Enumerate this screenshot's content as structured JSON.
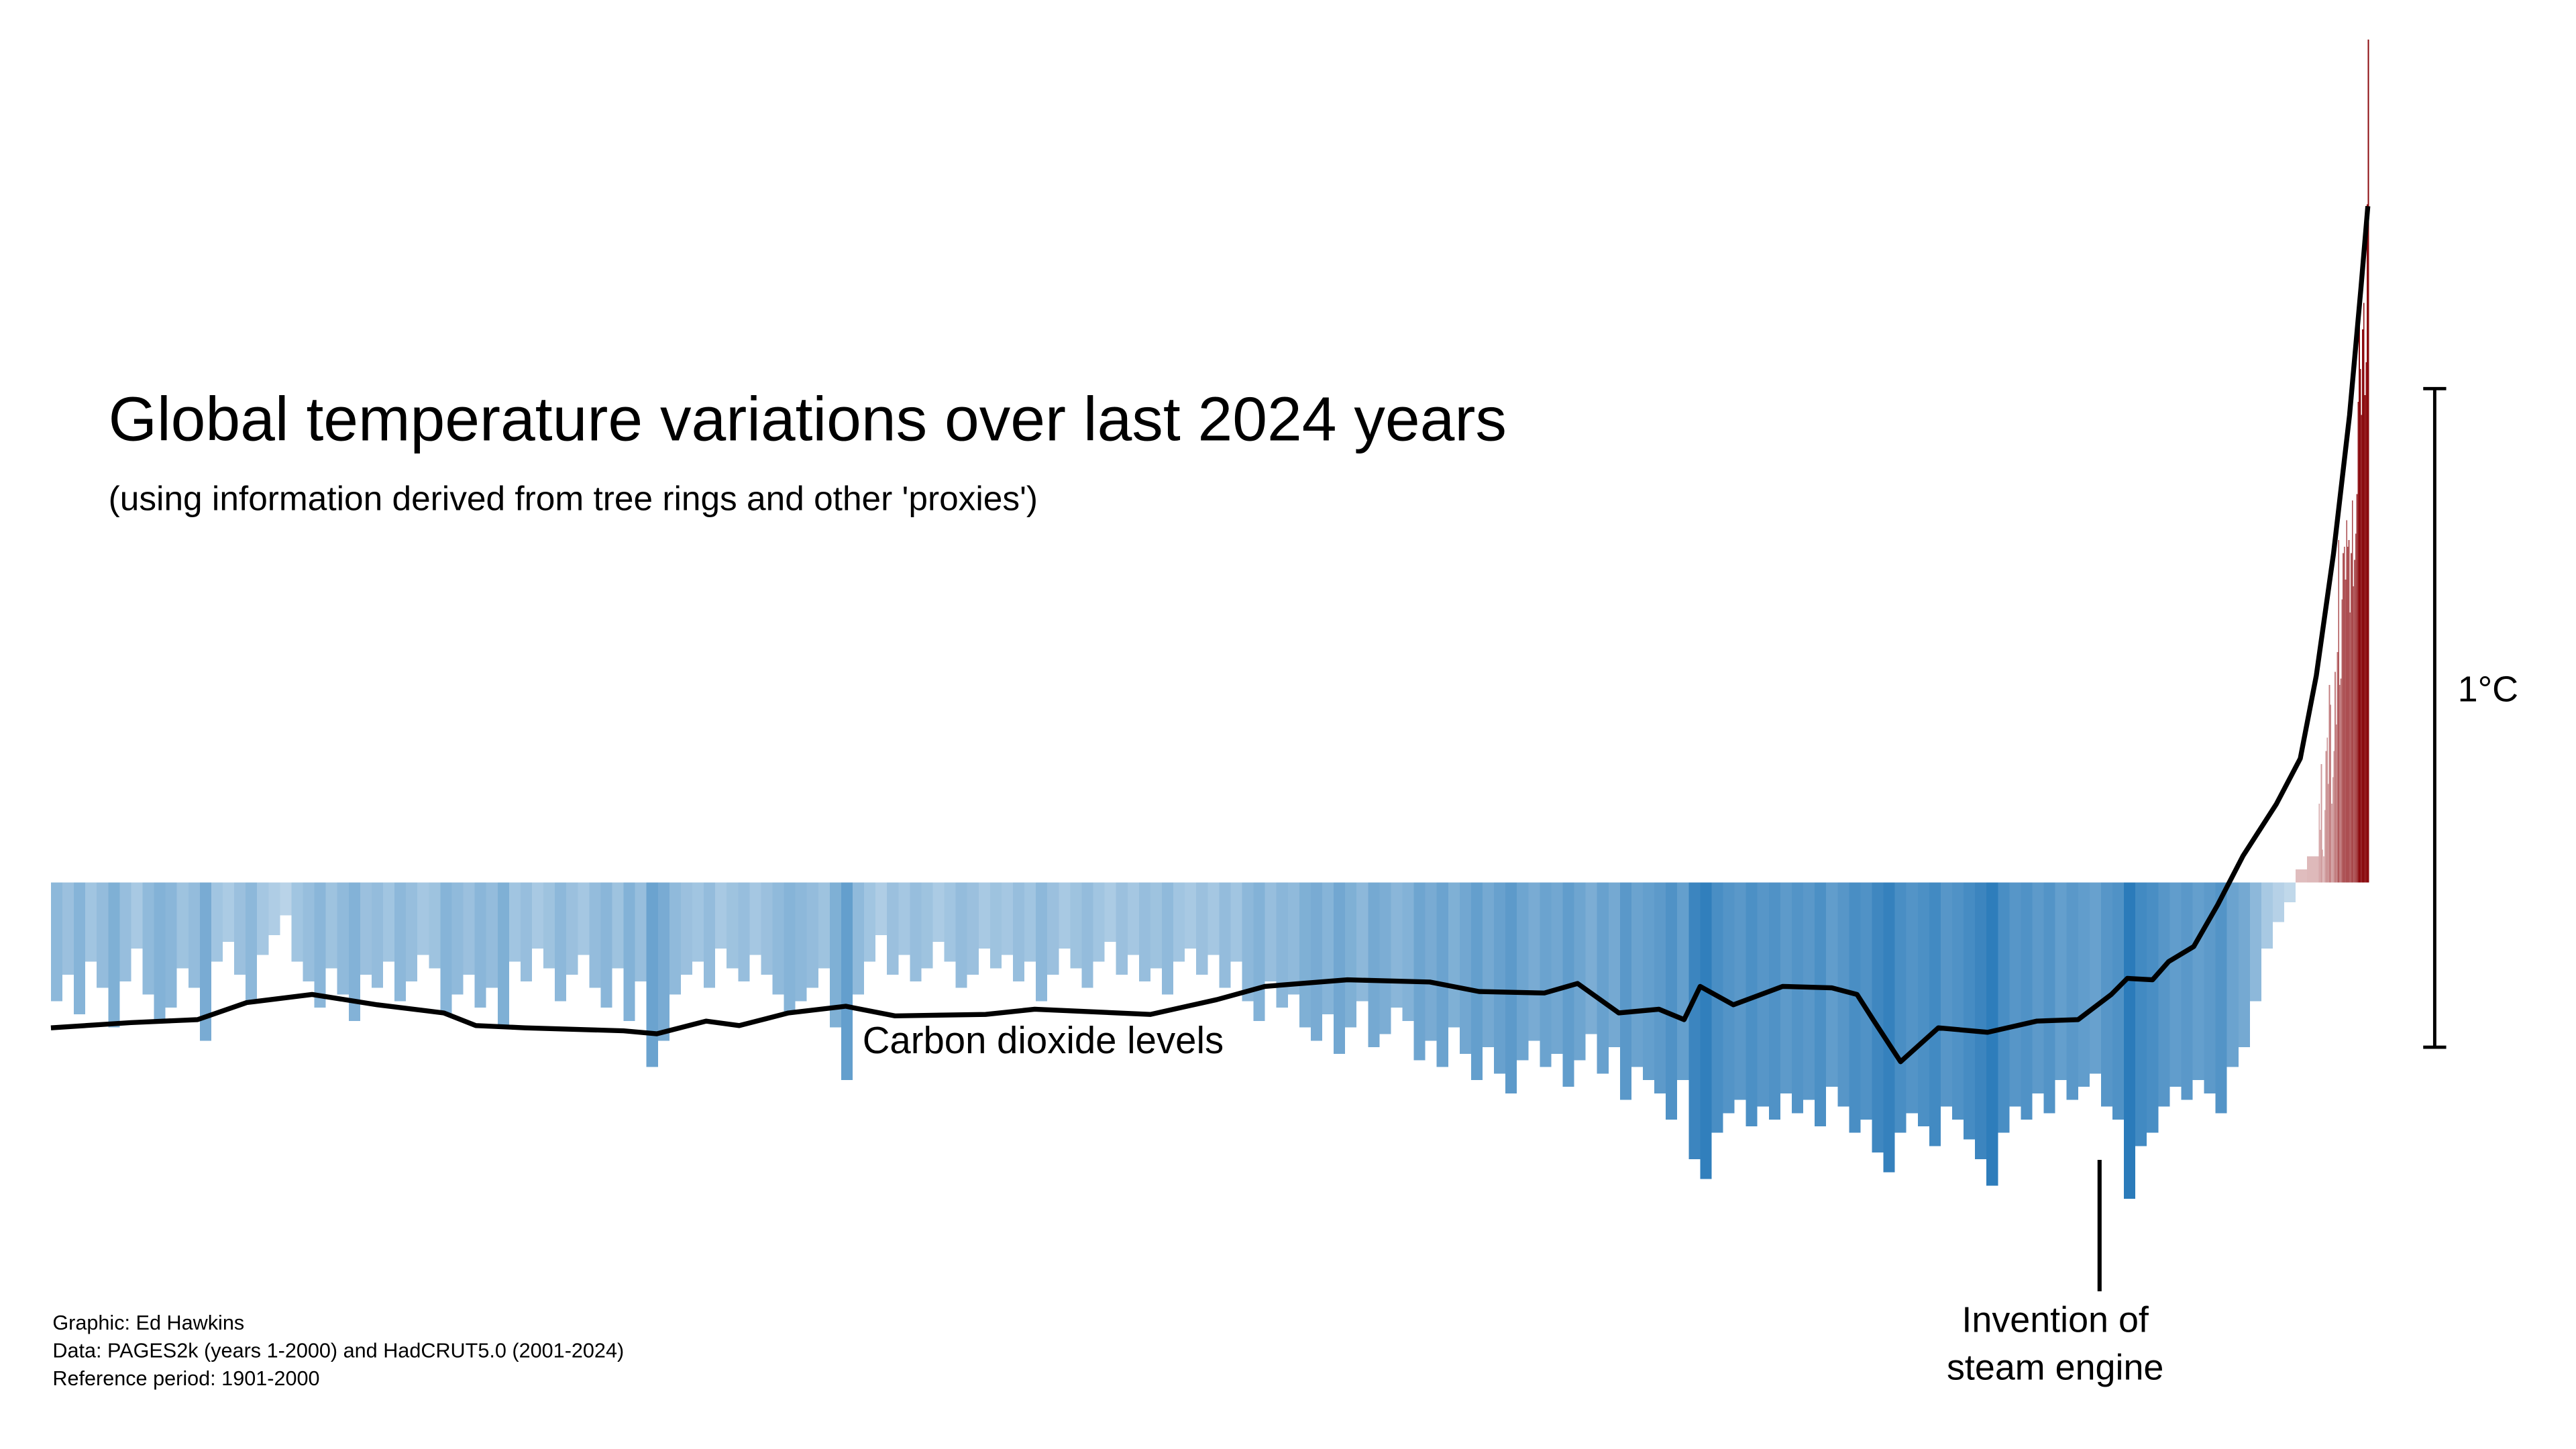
{
  "chart_data": {
    "type": "bar",
    "title": "Global temperature variations over last 2024 years",
    "subtitle": "(using information derived from tree rings and other 'proxies')",
    "x": [
      1,
      11,
      21,
      31,
      41,
      51,
      61,
      71,
      81,
      91,
      101,
      111,
      121,
      131,
      141,
      151,
      161,
      171,
      181,
      191,
      201,
      211,
      221,
      231,
      241,
      251,
      261,
      271,
      281,
      291,
      301,
      311,
      321,
      331,
      341,
      351,
      361,
      371,
      381,
      391,
      401,
      411,
      421,
      431,
      441,
      451,
      461,
      471,
      481,
      491,
      501,
      511,
      521,
      531,
      541,
      551,
      561,
      571,
      581,
      591,
      601,
      611,
      621,
      631,
      641,
      651,
      661,
      671,
      681,
      691,
      701,
      711,
      721,
      731,
      741,
      751,
      761,
      771,
      781,
      791,
      801,
      811,
      821,
      831,
      841,
      851,
      861,
      871,
      881,
      891,
      901,
      911,
      921,
      931,
      941,
      951,
      961,
      971,
      981,
      991,
      1001,
      1011,
      1021,
      1031,
      1041,
      1051,
      1061,
      1071,
      1081,
      1091,
      1101,
      1111,
      1121,
      1131,
      1141,
      1151,
      1161,
      1171,
      1181,
      1191,
      1201,
      1211,
      1221,
      1231,
      1241,
      1251,
      1261,
      1271,
      1281,
      1291,
      1301,
      1311,
      1321,
      1331,
      1341,
      1351,
      1361,
      1371,
      1381,
      1391,
      1401,
      1411,
      1421,
      1431,
      1441,
      1451,
      1461,
      1471,
      1481,
      1491,
      1501,
      1511,
      1521,
      1531,
      1541,
      1551,
      1561,
      1571,
      1581,
      1591,
      1601,
      1611,
      1621,
      1631,
      1641,
      1651,
      1661,
      1671,
      1681,
      1691,
      1701,
      1711,
      1721,
      1731,
      1741,
      1751,
      1761,
      1771,
      1781,
      1791,
      1801,
      1811,
      1821,
      1831,
      1841,
      1851,
      1861,
      1871,
      1881,
      1891,
      1901,
      1911,
      1921,
      1931,
      1941,
      1951,
      1961,
      1971,
      1981,
      1982,
      1983,
      1984,
      1985,
      1986,
      1987,
      1988,
      1989,
      1990,
      1991,
      1992,
      1993,
      1994,
      1995,
      1996,
      1997,
      1998,
      1999,
      2000,
      2001,
      2002,
      2003,
      2004,
      2005,
      2006,
      2007,
      2008,
      2009,
      2010,
      2011,
      2012,
      2013,
      2014,
      2015,
      2016,
      2017,
      2018,
      2019,
      2020,
      2021,
      2022,
      2023,
      2024
    ],
    "values": [
      -0.18,
      -0.14,
      -0.2,
      -0.12,
      -0.16,
      -0.22,
      -0.15,
      -0.1,
      -0.17,
      -0.21,
      -0.19,
      -0.13,
      -0.16,
      -0.24,
      -0.12,
      -0.09,
      -0.14,
      -0.18,
      -0.11,
      -0.08,
      -0.05,
      -0.12,
      -0.15,
      -0.19,
      -0.13,
      -0.17,
      -0.21,
      -0.14,
      -0.16,
      -0.12,
      -0.18,
      -0.15,
      -0.11,
      -0.13,
      -0.2,
      -0.17,
      -0.14,
      -0.19,
      -0.16,
      -0.22,
      -0.12,
      -0.15,
      -0.1,
      -0.13,
      -0.18,
      -0.14,
      -0.11,
      -0.16,
      -0.19,
      -0.13,
      -0.21,
      -0.15,
      -0.28,
      -0.24,
      -0.17,
      -0.14,
      -0.12,
      -0.16,
      -0.1,
      -0.13,
      -0.15,
      -0.11,
      -0.14,
      -0.17,
      -0.2,
      -0.18,
      -0.16,
      -0.13,
      -0.22,
      -0.3,
      -0.17,
      -0.12,
      -0.08,
      -0.14,
      -0.11,
      -0.15,
      -0.13,
      -0.09,
      -0.12,
      -0.16,
      -0.14,
      -0.1,
      -0.13,
      -0.11,
      -0.15,
      -0.12,
      -0.18,
      -0.14,
      -0.1,
      -0.13,
      -0.16,
      -0.12,
      -0.09,
      -0.14,
      -0.11,
      -0.15,
      -0.13,
      -0.17,
      -0.12,
      -0.1,
      -0.14,
      -0.11,
      -0.16,
      -0.12,
      -0.18,
      -0.21,
      -0.15,
      -0.19,
      -0.17,
      -0.22,
      -0.24,
      -0.2,
      -0.26,
      -0.22,
      -0.18,
      -0.25,
      -0.23,
      -0.19,
      -0.21,
      -0.27,
      -0.24,
      -0.28,
      -0.22,
      -0.26,
      -0.3,
      -0.25,
      -0.29,
      -0.32,
      -0.27,
      -0.24,
      -0.28,
      -0.26,
      -0.31,
      -0.27,
      -0.23,
      -0.29,
      -0.25,
      -0.33,
      -0.28,
      -0.3,
      -0.32,
      -0.36,
      -0.3,
      -0.42,
      -0.45,
      -0.38,
      -0.35,
      -0.33,
      -0.37,
      -0.34,
      -0.36,
      -0.32,
      -0.35,
      -0.33,
      -0.37,
      -0.31,
      -0.34,
      -0.38,
      -0.36,
      -0.41,
      -0.44,
      -0.38,
      -0.35,
      -0.37,
      -0.4,
      -0.34,
      -0.36,
      -0.39,
      -0.42,
      -0.46,
      -0.38,
      -0.34,
      -0.36,
      -0.32,
      -0.35,
      -0.3,
      -0.33,
      -0.31,
      -0.29,
      -0.34,
      -0.36,
      -0.48,
      -0.4,
      -0.38,
      -0.34,
      -0.31,
      -0.33,
      -0.3,
      -0.32,
      -0.35,
      -0.28,
      -0.25,
      -0.18,
      -0.1,
      -0.06,
      -0.03,
      0.02,
      0.04,
      0.12,
      0.08,
      0.18,
      0.05,
      0.04,
      0.11,
      0.2,
      0.22,
      0.15,
      0.3,
      0.27,
      0.12,
      0.16,
      0.2,
      0.32,
      0.24,
      0.35,
      0.52,
      0.3,
      0.31,
      0.43,
      0.5,
      0.51,
      0.46,
      0.55,
      0.51,
      0.52,
      0.41,
      0.5,
      0.58,
      0.45,
      0.49,
      0.53,
      0.59,
      0.73,
      0.85,
      0.78,
      0.71,
      0.84,
      0.88,
      0.74,
      0.79,
      1.03,
      1.28
    ],
    "colors": {
      "negative": "#2b7bba",
      "positive": "#8b0a0e"
    },
    "xlim": [
      1,
      2025
    ],
    "ylim": [
      -0.85,
      1.33
    ],
    "y2lim": [
      227,
      454
    ],
    "y2log": true,
    "line": {
      "name": "Carbon dioxide levels",
      "color": "#000000",
      "axis": "y2",
      "x": [
        1,
        71,
        129,
        172,
        229,
        286,
        344,
        372,
        415,
        501,
        530,
        573,
        602,
        645,
        695,
        738,
        817,
        860,
        961,
        1019,
        1061,
        1133,
        1205,
        1248,
        1305,
        1334,
        1370,
        1405,
        1427,
        1441,
        1470,
        1513,
        1556,
        1578,
        1592,
        1616,
        1649,
        1692,
        1735,
        1771,
        1800,
        1814,
        1836,
        1850,
        1872,
        1893,
        1915,
        1944,
        1965,
        1979,
        1994,
        2008,
        2018,
        2024
      ],
      "values": [
        277.3,
        278.0,
        278.4,
        280.7,
        281.8,
        280.4,
        279.3,
        277.6,
        277.3,
        276.9,
        276.5,
        278.2,
        277.6,
        279.3,
        280.2,
        278.9,
        279.1,
        279.8,
        279.1,
        281.1,
        282.9,
        283.8,
        283.5,
        282.2,
        282.0,
        283.3,
        279.3,
        279.8,
        278.4,
        282.9,
        280.4,
        282.9,
        282.7,
        281.8,
        278.4,
        272.8,
        277.3,
        276.7,
        278.2,
        278.4,
        281.8,
        284.0,
        283.8,
        286.3,
        288.4,
        294.3,
        301.3,
        308.9,
        315.8,
        328.7,
        348.6,
        372.7,
        396.4,
        412.3
      ]
    },
    "scale_bar": {
      "label": "1°C",
      "values": [
        -0.25,
        0.75
      ]
    },
    "annotation": [
      "Invention of",
      "steam engine"
    ],
    "credits": [
      "Graphic: Ed Hawkins",
      "Data: PAGES2k (years 1-2000) and HadCRUT5.0 (2001-2024)",
      "Reference period: 1901-2000"
    ]
  }
}
